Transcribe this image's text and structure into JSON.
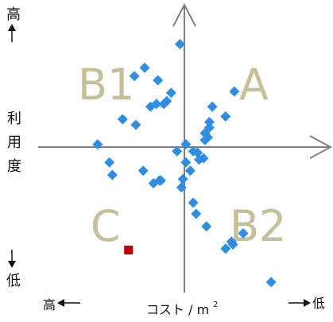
{
  "chart_data": {
    "type": "scatter",
    "title": "",
    "xlabel": "コスト / m",
    "xlabel_superscript": "2",
    "ylabel": [
      "利",
      "用",
      "度"
    ],
    "x_low_label": "高",
    "x_high_label": "低",
    "y_high_label": "高",
    "y_low_label": "低",
    "quadrants": [
      "A",
      "B1",
      "B2",
      "C"
    ],
    "xlim": [
      -100,
      100
    ],
    "ylim": [
      -100,
      100
    ],
    "grid": false,
    "colors": {
      "series": "#2f8de4",
      "highlight": "#c00000",
      "quadrant_text": "#c7bf9a",
      "axis": "#7f7f7f"
    },
    "series": [
      {
        "marker": "diamond",
        "x": [
          -3,
          -34,
          -27,
          -18,
          -9,
          -12,
          -14,
          -23,
          -19,
          -33,
          -42,
          -59,
          -51,
          -49,
          -28,
          -16,
          -17,
          -5,
          1,
          6,
          9,
          13,
          14,
          17,
          17,
          19,
          28,
          34,
          14,
          16,
          10,
          1,
          4,
          -1,
          -2,
          6,
          8,
          15,
          32,
          40,
          59,
          33,
          28,
          -21
        ],
        "y": [
          74,
          51,
          57,
          48,
          39,
          33,
          31,
          29,
          31,
          16,
          20,
          2,
          -11,
          -20,
          -17,
          -24,
          -24,
          -3,
          2,
          -3,
          -4,
          -8,
          5,
          14,
          18,
          29,
          22,
          40,
          10,
          7,
          -9,
          -11,
          -17,
          -23,
          -29,
          -40,
          -48,
          -57,
          -68,
          -62,
          -97,
          -70,
          -73,
          -26
        ]
      },
      {
        "marker": "square",
        "x": [
          -38
        ],
        "y": [
          -74
        ]
      }
    ]
  }
}
